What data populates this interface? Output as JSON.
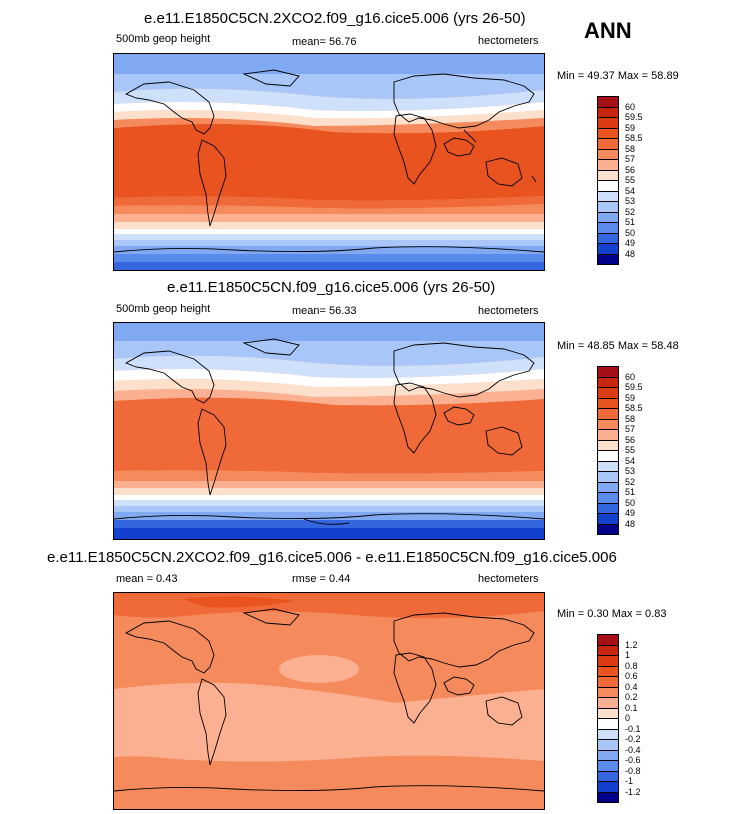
{
  "season_label": "ANN",
  "panels": [
    {
      "title": "e.e11.E1850C5CN.2XCO2.f09_g16.cice5.006 (yrs 26-50)",
      "left_label": "500mb geop height",
      "center_label": "mean=  56.76",
      "right_label": "hectometers",
      "minmax": "Min = 49.37 Max = 58.89",
      "colorbar_labels": [
        "60",
        "59.5",
        "59",
        "58.5",
        "58",
        "57",
        "56",
        "55",
        "54",
        "53",
        "52",
        "51",
        "50",
        "49",
        "48"
      ],
      "colorbar_colors": [
        "#a50f15",
        "#c8250f",
        "#dc3c14",
        "#e8531f",
        "#ef6a38",
        "#f58a5c",
        "#fbb191",
        "#fde0cc",
        "#ffffff",
        "#cfe0fb",
        "#a8c6f7",
        "#80a9f2",
        "#5a8aeb",
        "#3466e0",
        "#1440cf",
        "#00008a"
      ]
    },
    {
      "title": "e.e11.E1850C5CN.f09_g16.cice5.006 (yrs 26-50)",
      "left_label": "500mb geop height",
      "center_label": "mean=  56.33",
      "right_label": "hectometers",
      "minmax": "Min = 48.85 Max = 58.48",
      "colorbar_labels": [
        "60",
        "59.5",
        "59",
        "58.5",
        "58",
        "57",
        "56",
        "55",
        "54",
        "53",
        "52",
        "51",
        "50",
        "49",
        "48"
      ],
      "colorbar_colors": [
        "#a50f15",
        "#c8250f",
        "#dc3c14",
        "#e8531f",
        "#ef6a38",
        "#f58a5c",
        "#fbb191",
        "#fde0cc",
        "#ffffff",
        "#cfe0fb",
        "#a8c6f7",
        "#80a9f2",
        "#5a8aeb",
        "#3466e0",
        "#1440cf",
        "#00008a"
      ]
    },
    {
      "title": "e.e11.E1850C5CN.2XCO2.f09_g16.cice5.006 - e.e11.E1850C5CN.f09_g16.cice5.006",
      "left_label": "mean =   0.43",
      "center_label": "rmse =   0.44",
      "right_label": "hectometers",
      "minmax": "Min =  0.30 Max =   0.83",
      "colorbar_labels": [
        "1.2",
        "1",
        "0.8",
        "0.6",
        "0.4",
        "0.2",
        "0.1",
        "0",
        "-0.1",
        "-0.2",
        "-0.4",
        "-0.6",
        "-0.8",
        "-1",
        "-1.2"
      ],
      "colorbar_colors": [
        "#a50f15",
        "#c8250f",
        "#dc3c14",
        "#e8531f",
        "#ef6a38",
        "#f58a5c",
        "#fbb191",
        "#fde0cc",
        "#ffffff",
        "#cfe0fb",
        "#a8c6f7",
        "#80a9f2",
        "#5a8aeb",
        "#3466e0",
        "#1440cf",
        "#00008a"
      ]
    }
  ]
}
